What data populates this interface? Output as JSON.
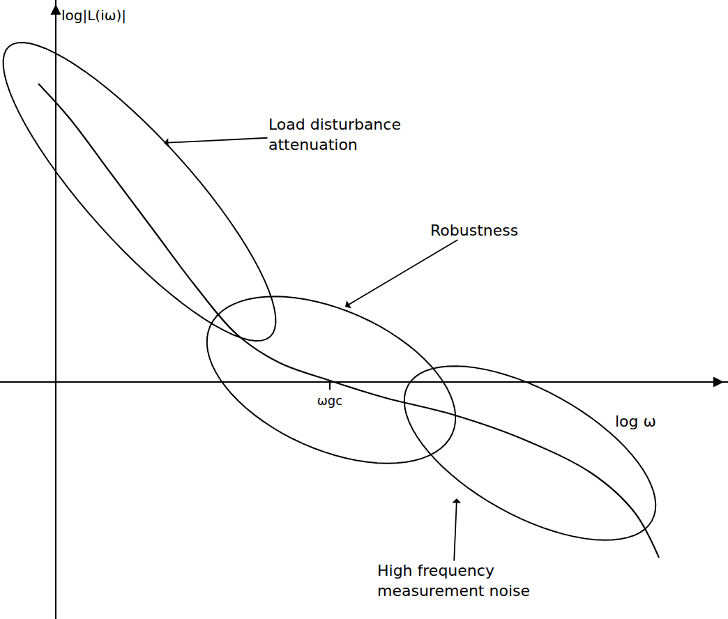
{
  "chart_data": {
    "type": "line",
    "x": [
      -2.5,
      2,
      8,
      14,
      20,
      26,
      32,
      39,
      47,
      57,
      67,
      77,
      83,
      86.5
    ],
    "values": [
      42.8,
      37.8,
      29.8,
      21.8,
      13.8,
      6.8,
      2.8,
      0.3,
      -2.2,
      -4.7,
      -8.2,
      -13.2,
      -18.7,
      -25.2
    ],
    "xlim": [
      -8,
      96.4
    ],
    "ylim": [
      -34,
      54.8
    ],
    "xticks": [
      {
        "value": 39.3,
        "label": "ωgc"
      }
    ],
    "yticks": [],
    "xlabel": "log ω",
    "ylabel": "log|L(iω)|",
    "tick_labels": "x",
    "grid": false,
    "color": "#000000",
    "line_style": "solid",
    "annotations": [
      {
        "text_lines": [
          "Load disturbance",
          "attenuation"
        ]
      },
      {
        "text_lines": [
          "Robustness"
        ]
      },
      {
        "text_lines": [
          "High frequency",
          "measurement noise"
        ]
      }
    ]
  }
}
